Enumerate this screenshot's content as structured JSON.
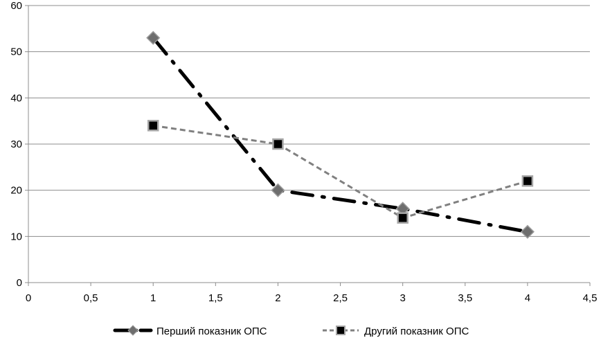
{
  "chart_data": {
    "type": "line",
    "title": "",
    "xlabel": "",
    "ylabel": "",
    "xlim": [
      0,
      4.5
    ],
    "ylim": [
      0,
      60
    ],
    "x_ticks": [
      "0",
      "0,5",
      "1",
      "1,5",
      "2",
      "2,5",
      "3",
      "3,5",
      "4",
      "4,5"
    ],
    "y_ticks": [
      "0",
      "10",
      "20",
      "30",
      "40",
      "50",
      "60"
    ],
    "grid": "horizontal",
    "legend_position": "bottom",
    "series": [
      {
        "name": "Перший показник ОПС",
        "x": [
          1,
          2,
          3,
          4
        ],
        "y": [
          53,
          20,
          16,
          11
        ],
        "color": "#000000",
        "marker_color": "#6e6e6e",
        "marker": "diamond",
        "line_style": "long-dash-dot"
      },
      {
        "name": "Другий показник ОПС",
        "x": [
          1,
          2,
          3,
          4
        ],
        "y": [
          34,
          30,
          14,
          22
        ],
        "color": "#808080",
        "marker_color": "#000000",
        "marker": "square",
        "line_style": "dash"
      }
    ]
  }
}
